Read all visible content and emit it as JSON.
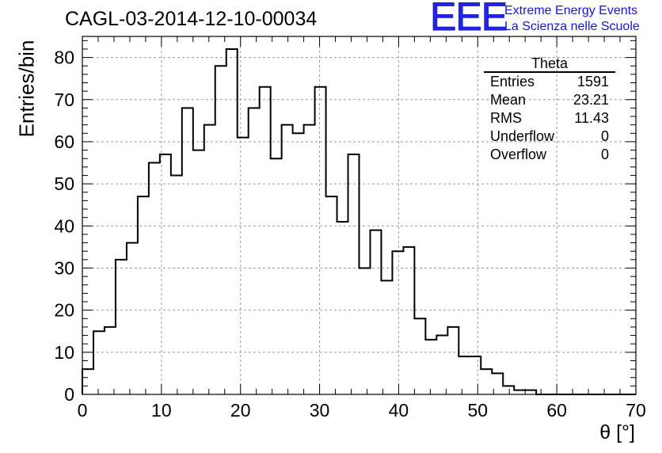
{
  "header": {
    "run_title": "CAGL-03-2014-12-10-00034",
    "logo": "EEE",
    "project_line1": "Extreme Energy Events",
    "project_line2": "La Scienza nelle Scuole"
  },
  "stats_box": {
    "title": "Theta",
    "rows": [
      {
        "label": "Entries",
        "value": "1591"
      },
      {
        "label": "Mean",
        "value": "23.21"
      },
      {
        "label": "RMS",
        "value": "11.43"
      },
      {
        "label": "Underflow",
        "value": "0"
      },
      {
        "label": "Overflow",
        "value": "0"
      }
    ]
  },
  "colors": {
    "logo": "#2323e6",
    "line": "#000000",
    "grid": "#9a9a9a"
  },
  "chart_data": {
    "type": "histogram",
    "title": "CAGL-03-2014-12-10-00034",
    "xlabel": "θ [°]",
    "ylabel": "Entries/bin",
    "xlim": [
      0,
      70
    ],
    "ylim": [
      0,
      85
    ],
    "bin_width": 1.4,
    "bin_edges_start": 0,
    "values": [
      6,
      15,
      16,
      32,
      36,
      47,
      55,
      57,
      52,
      68,
      58,
      64,
      78,
      82,
      61,
      68,
      73,
      56,
      64,
      62,
      64,
      73,
      47,
      41,
      57,
      30,
      39,
      27,
      34,
      35,
      18,
      13,
      14,
      16,
      9,
      9,
      6,
      5,
      2,
      1,
      1,
      0,
      0,
      0,
      0,
      0,
      0,
      0,
      0,
      0
    ],
    "x_ticks": [
      0,
      10,
      20,
      30,
      40,
      50,
      60,
      70
    ],
    "y_ticks": [
      0,
      10,
      20,
      30,
      40,
      50,
      60,
      70,
      80
    ],
    "grid": true
  }
}
